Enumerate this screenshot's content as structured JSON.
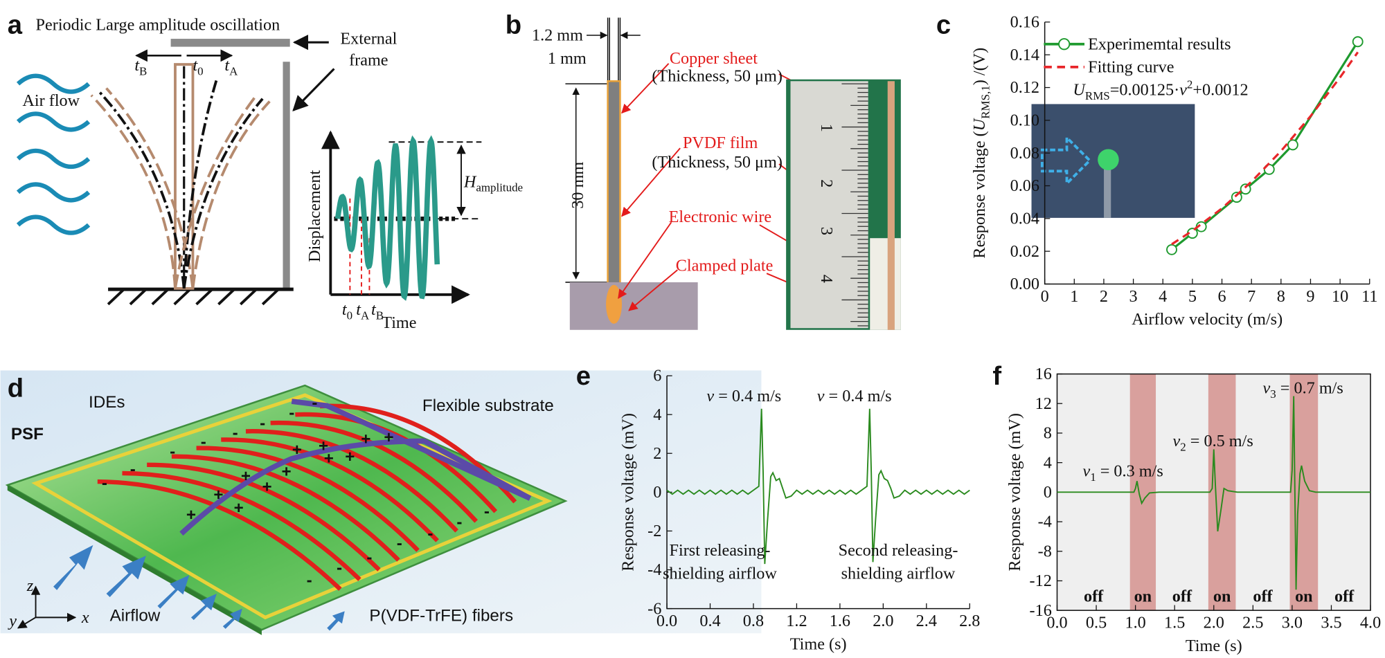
{
  "panel_a": {
    "letter": "a",
    "title": "Periodic Large amplitude oscillation",
    "frame_label": [
      "External",
      "frame"
    ],
    "airflow_label": "Air flow",
    "beam_times": [
      {
        "base": "t",
        "sub": "B"
      },
      {
        "base": "t",
        "sub": "0"
      },
      {
        "base": "t",
        "sub": "A"
      }
    ],
    "inset": {
      "y_label": "Displacement",
      "x_label": "Time",
      "amplitude": {
        "base": "H",
        "sub": "amplitude"
      },
      "times": [
        {
          "base": "t",
          "sub": "0"
        },
        {
          "base": "t",
          "sub": "A"
        },
        {
          "base": "t",
          "sub": "B"
        }
      ]
    }
  },
  "panel_b": {
    "letter": "b",
    "dims": [
      "1.2 mm",
      "1 mm",
      "30 mm"
    ],
    "labels": [
      {
        "name": "Copper sheet",
        "note": "(Thickness, 50 μm)"
      },
      {
        "name": "PVDF film",
        "note": "(Thickness, 50 μm)"
      },
      {
        "name": "Electronic wire"
      },
      {
        "name": "Clamped plate"
      }
    ],
    "ruler_digits": [
      "1",
      "2",
      "3",
      "4"
    ]
  },
  "panel_d": {
    "letter": "d",
    "labels": {
      "ides": "IDEs",
      "substrate": "Flexible substrate",
      "psf": "PSF",
      "airflow": "Airflow",
      "fibers": "P(VDF-TrFE) fibers"
    },
    "axes": [
      "z",
      "y",
      "x"
    ],
    "charges": [
      "-",
      "-",
      "-",
      "-",
      "-",
      "-",
      "-",
      "-",
      "-",
      "-",
      "-",
      "-",
      "-",
      "-",
      "-",
      "+",
      "+",
      "+",
      "+",
      "+",
      "+",
      "+",
      "+",
      "+",
      "+",
      "+",
      "+"
    ]
  },
  "chart_data": [
    {
      "letter": "c",
      "type": "line",
      "x_label": "Airflow velocity (m/s)",
      "y_label": {
        "text": "Response voltage (",
        "base": "U",
        "sub": "RMS,1",
        "end": ") /(V)"
      },
      "equation": {
        "base": "U",
        "sub": "RMS",
        "mid": "=0.00125·",
        "var": "v",
        "sup": "2",
        "end": "+0.0012"
      },
      "xlim": [
        0,
        11
      ],
      "xticks": [
        0,
        1,
        2,
        3,
        4,
        5,
        6,
        7,
        8,
        9,
        10,
        11
      ],
      "ylim": [
        0,
        0.16
      ],
      "yticks": [
        {
          "value": 0,
          "label": "0.00"
        },
        0.02,
        0.04,
        0.06,
        0.08,
        {
          "value": 0.1,
          "label": "0.10"
        },
        0.12,
        0.14,
        0.16
      ],
      "series": [
        {
          "name": "Experimemtal results",
          "color": "#1e9a2e",
          "markers": true,
          "x": [
            4.3,
            5.0,
            5.3,
            6.5,
            6.8,
            7.6,
            8.4,
            10.6
          ],
          "values": [
            0.021,
            0.031,
            0.035,
            0.053,
            0.058,
            0.07,
            0.085,
            0.148
          ]
        },
        {
          "name": "Fitting curve",
          "color": "#e8262a",
          "dashed": true,
          "x": [
            4.3,
            5,
            6,
            7,
            8,
            9,
            10,
            10.6
          ],
          "values": [
            0.0243,
            0.0325,
            0.0462,
            0.0625,
            0.0812,
            0.1025,
            0.1262,
            0.1416
          ]
        }
      ]
    },
    {
      "letter": "e",
      "type": "line",
      "x_label": "Time (s)",
      "y_label": "Response voltage (mV)",
      "xlim": [
        0,
        2.8
      ],
      "xticks": [
        {
          "value": 0,
          "label": "0.0"
        },
        0.4,
        0.8,
        1.2,
        1.6,
        {
          "value": 2,
          "label": "2.0"
        },
        2.4,
        2.8
      ],
      "ylim": [
        -6,
        6
      ],
      "yticks": [
        -6,
        -4,
        -2,
        0,
        2,
        4,
        6
      ],
      "color": "#2a8a1e",
      "x": [
        0,
        0.05,
        0.1,
        0.15,
        0.2,
        0.25,
        0.3,
        0.35,
        0.4,
        0.45,
        0.5,
        0.55,
        0.6,
        0.65,
        0.7,
        0.75,
        0.8,
        0.85,
        0.875,
        0.89,
        0.905,
        0.93,
        0.96,
        0.98,
        1.01,
        1.04,
        1.07,
        1.1,
        1.15,
        1.2,
        1.25,
        1.3,
        1.35,
        1.4,
        1.45,
        1.5,
        1.55,
        1.6,
        1.65,
        1.7,
        1.75,
        1.8,
        1.85,
        1.875,
        1.89,
        1.905,
        1.93,
        1.96,
        1.98,
        2.01,
        2.04,
        2.07,
        2.1,
        2.15,
        2.2,
        2.25,
        2.3,
        2.35,
        2.4,
        2.45,
        2.5,
        2.55,
        2.6,
        2.65,
        2.7,
        2.75,
        2.8
      ],
      "values": [
        0.1,
        -0.1,
        0.1,
        -0.1,
        0.1,
        -0.1,
        0.1,
        -0.1,
        0.1,
        -0.1,
        0.1,
        -0.1,
        0.1,
        -0.1,
        0.1,
        -0.1,
        0.1,
        0.3,
        4.3,
        1.0,
        -3.7,
        -1.5,
        0.8,
        1.0,
        0.6,
        0.7,
        0.2,
        -0.3,
        -0.2,
        0.1,
        -0.1,
        0.1,
        -0.1,
        0.1,
        -0.1,
        0.1,
        -0.1,
        0.1,
        -0.1,
        0.1,
        -0.1,
        0.1,
        0.3,
        4.3,
        1.0,
        -3.6,
        -1.4,
        0.9,
        1.1,
        0.7,
        0.6,
        0.2,
        -0.3,
        -0.2,
        0.1,
        -0.1,
        0.1,
        -0.1,
        0.1,
        -0.1,
        0.1,
        -0.1,
        0.1,
        -0.1,
        0.1,
        -0.1,
        0.1
      ],
      "annotations": [
        {
          "var": "v",
          "text": " = 0.4 m/s"
        },
        {
          "var": "v",
          "text": " = 0.4 m/s"
        }
      ],
      "captions": [
        [
          "First releasing-",
          "shielding airflow"
        ],
        [
          "Second releasing-",
          "shielding airflow"
        ]
      ]
    },
    {
      "letter": "f",
      "type": "line",
      "x_label": "Time (s)",
      "y_label": "Response voltage (mV)",
      "xlim": [
        0,
        4
      ],
      "xticks": [
        {
          "value": 0,
          "label": "0.0"
        },
        0.5,
        {
          "value": 1,
          "label": "1.0"
        },
        1.5,
        {
          "value": 2,
          "label": "2.0"
        },
        2.5,
        {
          "value": 3,
          "label": "3.0"
        },
        3.5,
        {
          "value": 4,
          "label": "4.0"
        }
      ],
      "ylim": [
        -16,
        16
      ],
      "yticks": [
        -16,
        -12,
        -8,
        -4,
        0,
        4,
        8,
        12,
        16
      ],
      "color": "#2a8a1e",
      "regions": [
        [
          0.93,
          1.26
        ],
        [
          1.93,
          2.28
        ],
        [
          2.97,
          3.33
        ]
      ],
      "states": [
        "off",
        "on",
        "off",
        "on",
        "off",
        "on",
        "off"
      ],
      "x": [
        0,
        0.5,
        0.98,
        1.0,
        1.02,
        1.05,
        1.08,
        1.12,
        1.18,
        1.3,
        1.95,
        1.98,
        2.0,
        2.02,
        2.05,
        2.09,
        2.13,
        2.18,
        2.3,
        2.98,
        3.0,
        3.02,
        3.035,
        3.05,
        3.07,
        3.1,
        3.12,
        3.16,
        3.22,
        3.3,
        4.0
      ],
      "values": [
        0,
        0,
        0,
        0.5,
        1.5,
        -0.3,
        -1.5,
        -0.8,
        -0.1,
        0,
        0,
        0.5,
        5.8,
        1.0,
        -5.3,
        -2.5,
        0.5,
        0.2,
        0,
        0,
        3.0,
        13,
        0,
        -13.2,
        -3,
        2.5,
        3.6,
        1.5,
        0.2,
        0,
        0
      ],
      "annotations": [
        {
          "var": "v",
          "sub": "1",
          "text": " = 0.3 m/s"
        },
        {
          "var": "v",
          "sub": "2",
          "text": " = 0.5 m/s"
        },
        {
          "var": "v",
          "sub": "3",
          "text": " = 0.7 m/s"
        }
      ]
    }
  ]
}
